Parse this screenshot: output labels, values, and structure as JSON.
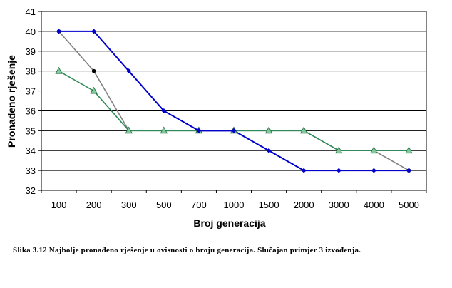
{
  "chart_data": {
    "type": "line",
    "title": "",
    "xlabel": "Broj generacija",
    "ylabel": "Pronađeno rješenje",
    "categories": [
      "100",
      "200",
      "300",
      "500",
      "700",
      "1000",
      "1500",
      "2000",
      "3000",
      "4000",
      "5000"
    ],
    "ylim": [
      32,
      41
    ],
    "yticks": [
      32,
      33,
      34,
      35,
      36,
      37,
      38,
      39,
      40,
      41
    ],
    "grid": "horizontal",
    "series": [
      {
        "color": "#0000cc",
        "marker": "diamond",
        "values": [
          40,
          40,
          38,
          36,
          35,
          35,
          34,
          33,
          33,
          33,
          33
        ]
      },
      {
        "color": "#808080",
        "marker": "dot",
        "values": [
          40,
          38,
          35,
          35,
          35,
          35,
          35,
          35,
          34,
          34,
          33
        ]
      },
      {
        "color": "#2e8b57",
        "marker": "triangle",
        "values": [
          38,
          37,
          35,
          35,
          35,
          35,
          35,
          35,
          34,
          34,
          34
        ]
      }
    ]
  },
  "caption": "Slika 3.12 Najbolje pronađeno rješenje u ovisnosti o broju generacija. Slučajan primjer 3 izvođenja."
}
